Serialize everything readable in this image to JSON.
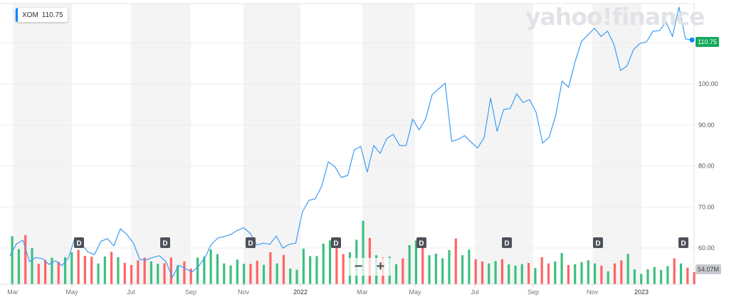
{
  "legend": {
    "symbol": "XOM",
    "price": "110.75",
    "accent": "#0a84ff"
  },
  "logo": "yahoo!finance",
  "price_tag": "110.75",
  "volume_tag": "54.07M",
  "zoom_controls": {
    "minus": "−",
    "plus": "+"
  },
  "dividend_marker": "D",
  "colors": {
    "line": "#3d9bf4",
    "up": "#3cc07f",
    "down": "#ff6464",
    "band": "#f4f4f5",
    "grid": "#ececec"
  },
  "chart_data": {
    "type": "line",
    "title": "",
    "series": [
      {
        "values": [
          58.1,
          61.0,
          61.9,
          56.7,
          57.7,
          57.4,
          56.0,
          56.9,
          55.7,
          57.6,
          62.4,
          61.0,
          59.0,
          58.4,
          61.6,
          62.3,
          60.5,
          64.7,
          63.3,
          61.2,
          57.2,
          57.1,
          57.7,
          58.1,
          56.7,
          52.9,
          55.8,
          55.0,
          54.1,
          55.5,
          57.6,
          60.9,
          62.4,
          62.8,
          63.3,
          64.3,
          64.9,
          63.6,
          60.7,
          61.2,
          60.9,
          62.9,
          60.0,
          60.9,
          61.2,
          68.7,
          71.6,
          72.0,
          75.1,
          81.0,
          79.9,
          77.2,
          77.7,
          83.9,
          84.8,
          78.5,
          85.0,
          83.1,
          86.7,
          87.7,
          85.0,
          85.0,
          91.4,
          88.8,
          91.5,
          97.4,
          98.8,
          100.2,
          86.0,
          86.5,
          87.4,
          85.8,
          84.4,
          86.9,
          96.6,
          88.4,
          93.8,
          94.0,
          97.6,
          95.5,
          96.2,
          93.1,
          85.6,
          87.0,
          92.2,
          100.7,
          99.2,
          105.4,
          110.4,
          112.0,
          113.6,
          111.6,
          112.9,
          109.6,
          103.3,
          104.4,
          108.4,
          109.9,
          110.3,
          112.9,
          113.0,
          115.1,
          111.6,
          118.8,
          111.0,
          110.75
        ]
      }
    ],
    "volume": {
      "unit": "M",
      "values": [
        215,
        157,
        220,
        162,
        91,
        109,
        119,
        100,
        121,
        143,
        154,
        127,
        123,
        93,
        124,
        145,
        121,
        96,
        86,
        107,
        119,
        102,
        91,
        94,
        120,
        84,
        102,
        70,
        119,
        124,
        156,
        135,
        93,
        84,
        110,
        91,
        91,
        105,
        87,
        143,
        93,
        131,
        70,
        65,
        159,
        126,
        126,
        182,
        196,
        167,
        135,
        143,
        199,
        284,
        207,
        130,
        120,
        123,
        90,
        116,
        175,
        196,
        167,
        130,
        137,
        116,
        153,
        205,
        130,
        155,
        112,
        102,
        93,
        104,
        112,
        89,
        83,
        90,
        95,
        72,
        121,
        93,
        102,
        140,
        86,
        90,
        99,
        107,
        93,
        83,
        58,
        93,
        107,
        136,
        67,
        46,
        67,
        77,
        64,
        81,
        116,
        93,
        74,
        54.07
      ],
      "direction": [
        "up",
        "up",
        "down",
        "up",
        "down",
        "down",
        "up",
        "down",
        "up",
        "up",
        "down",
        "down",
        "down",
        "up",
        "up",
        "down",
        "up",
        "down",
        "down",
        "down",
        "down",
        "up",
        "up",
        "down",
        "down",
        "up",
        "down",
        "down",
        "up",
        "up",
        "up",
        "up",
        "up",
        "up",
        "up",
        "up",
        "down",
        "down",
        "up",
        "down",
        "up",
        "down",
        "up",
        "up",
        "up",
        "up",
        "up",
        "up",
        "up",
        "down",
        "down",
        "up",
        "up",
        "up",
        "down",
        "up",
        "down",
        "up",
        "up",
        "down",
        "up",
        "up",
        "down",
        "up",
        "up",
        "up",
        "up",
        "down",
        "up",
        "up",
        "down",
        "down",
        "up",
        "up",
        "down",
        "up",
        "up",
        "up",
        "down",
        "up",
        "down",
        "down",
        "up",
        "up",
        "down",
        "up",
        "up",
        "up",
        "up",
        "down",
        "up",
        "down",
        "down",
        "up",
        "up",
        "up",
        "up",
        "up",
        "up",
        "up",
        "down",
        "up",
        "down",
        "down"
      ]
    },
    "x_tick_labels": [
      "Mar",
      "May",
      "Jul",
      "Sep",
      "Nov",
      "2022",
      "Mar",
      "May",
      "Jul",
      "Sep",
      "Nov",
      "2023"
    ],
    "y_tick_labels": [
      "100.00",
      "90.00",
      "80.00",
      "70.00",
      "60.00"
    ],
    "y_ticks": [
      100,
      90,
      80,
      70,
      60
    ],
    "ylim": [
      52,
      118.8
    ],
    "last_price": 110.75,
    "dividend_count": 8,
    "grid": true
  }
}
